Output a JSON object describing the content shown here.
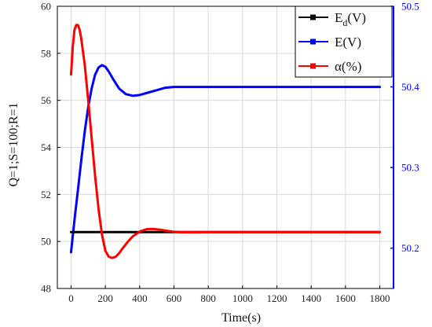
{
  "chart_data": {
    "type": "line",
    "title": "",
    "xlabel": "Time(s)",
    "ylabel_left": "Q=1;S=100;R=1",
    "ylabel_right": "",
    "xlim": [
      -80,
      1880
    ],
    "ylim_left": [
      48,
      60
    ],
    "ylim_right": [
      50.15,
      50.5
    ],
    "x_ticks": [
      "0",
      "200",
      "400",
      "600",
      "800",
      "1000",
      "1200",
      "1400",
      "1600",
      "1800"
    ],
    "y_ticks_left": [
      "48",
      "50",
      "52",
      "54",
      "56",
      "58",
      "60"
    ],
    "y_ticks_right": [
      "50.2",
      "50.3",
      "50.4",
      "50.5"
    ],
    "grid": true,
    "legend_position": "top-right",
    "series": [
      {
        "name": "Ed(V)",
        "legend_main": "E",
        "legend_sub": "d",
        "legend_suffix": "(V)",
        "axis": "left",
        "color": "#000000",
        "x": [
          0,
          1800
        ],
        "y": [
          50.4,
          50.4
        ]
      },
      {
        "name": "E(V)",
        "legend_main": "E",
        "legend_sub": "",
        "legend_suffix": "(V)",
        "axis": "right",
        "color": "#0000ff",
        "x": [
          0,
          20,
          40,
          60,
          80,
          100,
          120,
          140,
          160,
          180,
          200,
          220,
          250,
          280,
          320,
          360,
          400,
          450,
          500,
          550,
          600,
          700,
          800,
          1000,
          1200,
          1400,
          1600,
          1800
        ],
        "y": [
          50.195,
          50.235,
          50.272,
          50.31,
          50.345,
          50.375,
          50.398,
          50.415,
          50.424,
          50.427,
          50.425,
          50.419,
          50.408,
          50.398,
          50.391,
          50.389,
          50.39,
          50.393,
          50.396,
          50.399,
          50.4,
          50.4,
          50.4,
          50.4,
          50.4,
          50.4,
          50.4,
          50.4
        ]
      },
      {
        "name": "α(%)",
        "legend_main": "α",
        "legend_sub": "",
        "legend_suffix": "(%)",
        "axis": "left",
        "color": "#ff0000",
        "x": [
          0,
          10,
          20,
          30,
          40,
          50,
          60,
          80,
          100,
          120,
          140,
          160,
          180,
          200,
          220,
          240,
          260,
          280,
          300,
          330,
          360,
          400,
          440,
          480,
          520,
          560,
          600,
          650,
          700,
          800,
          1000,
          1200,
          1400,
          1600,
          1800
        ],
        "y": [
          57.1,
          58.3,
          59.0,
          59.2,
          59.2,
          59.0,
          58.6,
          57.5,
          56.0,
          54.4,
          52.8,
          51.4,
          50.3,
          49.6,
          49.35,
          49.3,
          49.35,
          49.5,
          49.7,
          49.98,
          50.22,
          50.42,
          50.52,
          50.53,
          50.5,
          50.45,
          50.41,
          50.39,
          50.39,
          50.4,
          50.4,
          50.4,
          50.4,
          50.4,
          50.4
        ]
      }
    ]
  }
}
